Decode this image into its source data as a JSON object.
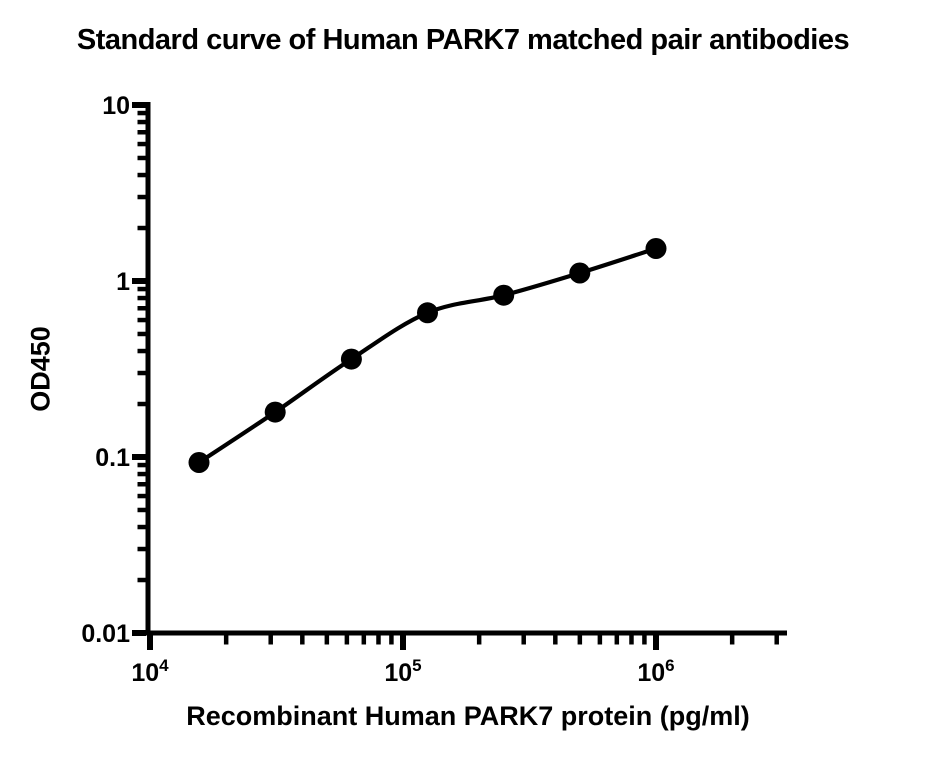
{
  "figure": {
    "background": "#ffffff",
    "ink": "#000000"
  },
  "chart_data": {
    "type": "line",
    "title": "Standard curve of Human PARK7 matched pair antibodies",
    "xlabel": "Recombinant Human PARK7 protein (pg/ml)",
    "ylabel": "OD450",
    "x_scale": "log",
    "y_scale": "log",
    "xlim": [
      10000,
      3300000
    ],
    "ylim": [
      0.01,
      10
    ],
    "grid": false,
    "legend": false,
    "line_color": "#000000",
    "marker_color": "#000000",
    "series": [
      {
        "x": [
          15625,
          31250,
          62500,
          125000,
          250000,
          500000,
          1000000
        ],
        "y": [
          0.093,
          0.18,
          0.36,
          0.66,
          0.83,
          1.11,
          1.53
        ]
      }
    ],
    "x_ticks_major": [
      {
        "base": "10",
        "exp": "4",
        "value": 10000
      },
      {
        "base": "10",
        "exp": "5",
        "value": 100000
      },
      {
        "base": "10",
        "exp": "6",
        "value": 1000000
      }
    ],
    "x_ticks_minor": [
      20000,
      30000,
      40000,
      50000,
      60000,
      70000,
      80000,
      90000,
      200000,
      300000,
      400000,
      500000,
      600000,
      700000,
      800000,
      900000,
      2000000,
      3000000
    ],
    "y_ticks_major": [
      {
        "label": "10",
        "value": 10
      },
      {
        "label": "1",
        "value": 1
      },
      {
        "label": "0.1",
        "value": 0.1
      },
      {
        "label": "0.01",
        "value": 0.01
      }
    ],
    "y_ticks_minor": [
      0.02,
      0.03,
      0.04,
      0.05,
      0.06,
      0.07,
      0.08,
      0.09,
      0.2,
      0.3,
      0.4,
      0.5,
      0.6,
      0.7,
      0.8,
      0.9,
      2,
      3,
      4,
      5,
      6,
      7,
      8,
      9
    ]
  }
}
